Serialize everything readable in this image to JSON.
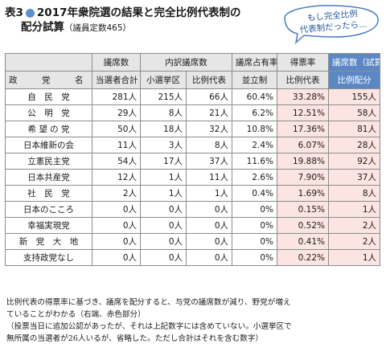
{
  "title": {
    "prefix": "表3",
    "main": "2017年衆院選の結果と完全比例代表制の",
    "line2": "配分試算",
    "sub": "（議員定数465）"
  },
  "bubble": {
    "line1": "もし完全比例",
    "line2": "代表制だったら…"
  },
  "table": {
    "group_headers": {
      "seats": "議席数",
      "breakdown": "内訳議席数",
      "share": "議席占有率",
      "votes": "得票率",
      "trial": "議席数（試算）"
    },
    "sub_headers": {
      "party": "政　党　名",
      "total": "当選者合計",
      "district": "小選挙区",
      "pr": "比例代表",
      "system": "並立制",
      "pr_rate": "比例代表",
      "pr_alloc": "比例配分"
    },
    "rows": [
      {
        "party": "自　民　党",
        "total": "281人",
        "district": "215人",
        "pr": "66人",
        "share": "60.4%",
        "vote": "33.28%",
        "alloc": "155人"
      },
      {
        "party": "公　明　党",
        "total": "29人",
        "district": "8人",
        "pr": "21人",
        "share": "6.2%",
        "vote": "12.51%",
        "alloc": "58人"
      },
      {
        "party": "希 望 の 党",
        "total": "50人",
        "district": "18人",
        "pr": "32人",
        "share": "10.8%",
        "vote": "17.36%",
        "alloc": "81人"
      },
      {
        "party": "日本維新の会",
        "total": "11人",
        "district": "3人",
        "pr": "8人",
        "share": "2.4%",
        "vote": "6.07%",
        "alloc": "28人"
      },
      {
        "party": "立憲民主党",
        "total": "54人",
        "district": "17人",
        "pr": "37人",
        "share": "11.6%",
        "vote": "19.88%",
        "alloc": "92人"
      },
      {
        "party": "日本共産党",
        "total": "12人",
        "district": "1人",
        "pr": "11人",
        "share": "2.6%",
        "vote": "7.90%",
        "alloc": "37人"
      },
      {
        "party": "社　民　党",
        "total": "2人",
        "district": "1人",
        "pr": "1人",
        "share": "0.4%",
        "vote": "1.69%",
        "alloc": "8人"
      },
      {
        "party": "日本のこころ",
        "total": "0人",
        "district": "0人",
        "pr": "0人",
        "share": "0%",
        "vote": "0.15%",
        "alloc": "1人"
      },
      {
        "party": "幸福実現党",
        "total": "0人",
        "district": "0人",
        "pr": "0人",
        "share": "0%",
        "vote": "0.52%",
        "alloc": "2人"
      },
      {
        "party": "新　党　大　地",
        "total": "0人",
        "district": "0人",
        "pr": "0人",
        "share": "0%",
        "vote": "0.41%",
        "alloc": "2人"
      },
      {
        "party": "支持政党なし",
        "total": "0人",
        "district": "0人",
        "pr": "0人",
        "share": "0%",
        "vote": "0.22%",
        "alloc": "1人"
      }
    ]
  },
  "note": {
    "line1": "比例代表の得票率に基づき、議席を配分すると、与党の議席数が減り、野党が増え",
    "line2": "ていることがわかる（右端、赤色部分）",
    "line3": "（投票当日に追加公認があったが、それは上記数字には含めていない。小選挙区で",
    "line4": "無所属の当選者が26人いるが、省略した。ただし合計はそれを含む数字）"
  },
  "colors": {
    "accent_blue": "#5b87c5",
    "highlight_pink": "#fbe4e2",
    "header_gray": "#e6e6e6",
    "bubble_text": "#2a5aa0"
  }
}
